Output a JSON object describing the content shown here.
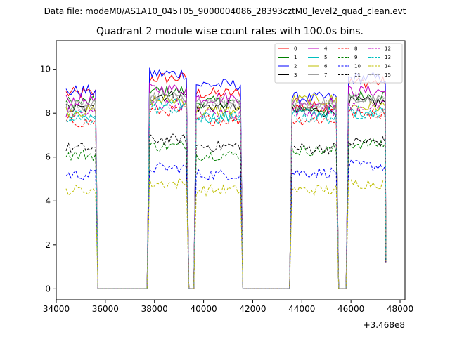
{
  "chart_data": {
    "type": "line",
    "supertitle": "Data file: modeM0/AS1A10_045T05_9000004086_28393cztM0_level2_quad_clean.evt",
    "title": "Quadrant 2 module wise count rates with 100.0s bins.",
    "xlabel": "",
    "ylabel": "",
    "x_offset_label": "+3.468e8",
    "xlim": [
      34000,
      48200
    ],
    "ylim": [
      -0.5,
      11.3
    ],
    "x_ticks": [
      34000,
      36000,
      38000,
      40000,
      42000,
      44000,
      46000,
      48000
    ],
    "x_tick_labels": [
      "34000",
      "36000",
      "38000",
      "40000",
      "42000",
      "44000",
      "46000",
      "48000"
    ],
    "y_ticks": [
      0,
      2,
      4,
      6,
      8,
      10
    ],
    "y_tick_labels": [
      "0",
      "2",
      "4",
      "6",
      "8",
      "10"
    ],
    "grid": false,
    "legend_position": "top-right",
    "bin_seconds": 100,
    "segments": [
      {
        "start": 34400,
        "end": 35600,
        "gap_end": 37800
      },
      {
        "start": 37800,
        "end": 39300,
        "gap_end": 39700
      },
      {
        "start": 39700,
        "end": 41500,
        "gap_end": 43600
      },
      {
        "start": 43600,
        "end": 45400,
        "gap_end": 45900
      },
      {
        "start": 45900,
        "end": 47400,
        "gap_end": null
      }
    ],
    "series": [
      {
        "name": "0",
        "color": "#ff0000",
        "dash": "solid",
        "levels": [
          8.9,
          9.6,
          8.9,
          8.3,
          9.4
        ]
      },
      {
        "name": "1",
        "color": "#008000",
        "dash": "solid",
        "levels": [
          8.5,
          9.0,
          8.5,
          8.2,
          8.8
        ]
      },
      {
        "name": "2",
        "color": "#0000ff",
        "dash": "solid",
        "levels": [
          9.0,
          9.8,
          9.3,
          8.7,
          9.6
        ]
      },
      {
        "name": "3",
        "color": "#000000",
        "dash": "solid",
        "levels": [
          8.2,
          8.8,
          8.3,
          8.1,
          8.5
        ]
      },
      {
        "name": "4",
        "color": "#bf00bf",
        "dash": "solid",
        "levels": [
          8.6,
          9.1,
          8.7,
          8.5,
          9.0
        ]
      },
      {
        "name": "5",
        "color": "#00bfbf",
        "dash": "solid",
        "levels": [
          7.9,
          8.4,
          7.8,
          8.0,
          8.1
        ]
      },
      {
        "name": "6",
        "color": "#bfbf00",
        "dash": "solid",
        "levels": [
          8.1,
          8.6,
          8.1,
          8.6,
          8.3
        ]
      },
      {
        "name": "7",
        "color": "#a0a0a0",
        "dash": "solid",
        "levels": [
          8.3,
          8.7,
          8.4,
          8.4,
          8.6
        ]
      },
      {
        "name": "8",
        "color": "#ff0000",
        "dash": "dashed",
        "levels": [
          7.6,
          8.1,
          7.7,
          7.7,
          8.0
        ]
      },
      {
        "name": "9",
        "color": "#008000",
        "dash": "dashed",
        "levels": [
          6.1,
          6.5,
          6.1,
          6.3,
          6.6
        ]
      },
      {
        "name": "10",
        "color": "#0000ff",
        "dash": "dashed",
        "levels": [
          5.2,
          5.5,
          5.2,
          5.3,
          5.6
        ]
      },
      {
        "name": "11",
        "color": "#000000",
        "dash": "dashed",
        "levels": [
          6.4,
          6.8,
          6.5,
          6.4,
          6.7
        ]
      },
      {
        "name": "12",
        "color": "#bf00bf",
        "dash": "dashed",
        "levels": [
          8.0,
          8.4,
          8.0,
          8.1,
          8.3
        ]
      },
      {
        "name": "13",
        "color": "#00bfbf",
        "dash": "dashed",
        "levels": [
          7.7,
          8.2,
          7.8,
          7.8,
          8.0
        ]
      },
      {
        "name": "14",
        "color": "#bfbf00",
        "dash": "dashed",
        "levels": [
          4.5,
          4.8,
          4.5,
          4.5,
          4.8
        ]
      },
      {
        "name": "15",
        "color": "#a0a0a0",
        "dash": "dashed",
        "levels": [
          8.4,
          8.8,
          8.5,
          8.3,
          8.7
        ]
      }
    ]
  }
}
